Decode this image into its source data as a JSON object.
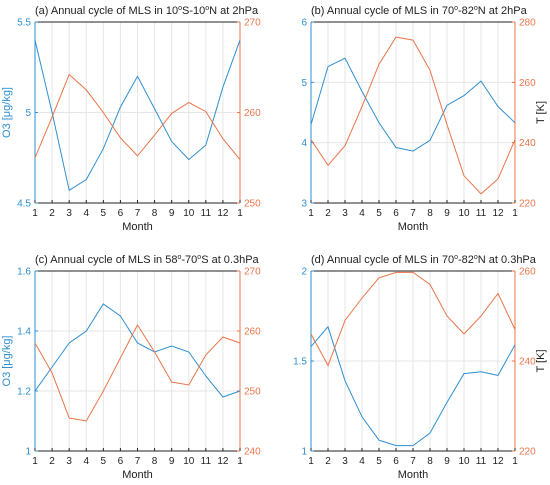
{
  "colors": {
    "o3": "#2f8fd0",
    "temp": "#e8764a",
    "axis": "#222222",
    "grid": "#e6e6e6"
  },
  "chart_data": [
    {
      "type": "line",
      "title_parts": {
        "pre": "(a) Annual cycle of MLS in 10",
        "sup1": "o",
        "mid": "S-10",
        "sup2": "o",
        "post": "N at 2hPa"
      },
      "xlabel": "Month",
      "ylabel_left": "O3 [μg/kg]",
      "ylabel_right": "",
      "x": [
        "1",
        "2",
        "3",
        "4",
        "5",
        "6",
        "7",
        "8",
        "9",
        "10",
        "11",
        "12",
        "1"
      ],
      "ylim_left": [
        4.5,
        5.5
      ],
      "ylim_right": [
        250,
        270
      ],
      "yticks_left": [
        "4.5",
        "5",
        "5.5"
      ],
      "yticks_right": [
        "250",
        "260",
        "270"
      ],
      "series": [
        {
          "axis": "left",
          "values": [
            5.4,
            5.0,
            4.57,
            4.63,
            4.8,
            5.03,
            5.2,
            5.02,
            4.84,
            4.74,
            4.82,
            5.14,
            5.4
          ]
        },
        {
          "axis": "right",
          "values": [
            255.0,
            259.5,
            264.2,
            262.5,
            260.0,
            257.2,
            255.2,
            257.5,
            259.9,
            261.1,
            260.1,
            257.1,
            254.8
          ]
        }
      ]
    },
    {
      "type": "line",
      "title_parts": {
        "pre": "(b) Annual cycle of MLS in 70",
        "sup1": "o",
        "mid": "-82",
        "sup2": "o",
        "post": "N at 2hPa"
      },
      "xlabel": "Month",
      "ylabel_left": "",
      "ylabel_right": "T [K]",
      "x": [
        "1",
        "2",
        "3",
        "4",
        "5",
        "6",
        "7",
        "8",
        "9",
        "10",
        "11",
        "12",
        "1"
      ],
      "ylim_left": [
        3,
        6
      ],
      "ylim_right": [
        220,
        280
      ],
      "yticks_left": [
        "3",
        "4",
        "5",
        "6"
      ],
      "yticks_right": [
        "220",
        "240",
        "260",
        "280"
      ],
      "series": [
        {
          "axis": "left",
          "values": [
            4.3,
            5.26,
            5.4,
            4.85,
            4.33,
            3.92,
            3.86,
            4.04,
            4.62,
            4.78,
            5.02,
            4.6,
            4.33
          ]
        },
        {
          "axis": "right",
          "values": [
            241.0,
            232.5,
            239.0,
            252.0,
            266.0,
            275.0,
            274.0,
            264.0,
            246.0,
            229.0,
            223.0,
            228.0,
            241.0
          ]
        }
      ]
    },
    {
      "type": "line",
      "title_parts": {
        "pre": "(c) Annual cycle of MLS in 58",
        "sup1": "o",
        "mid": "-70",
        "sup2": "o",
        "post": "S at 0.3hPa"
      },
      "xlabel": "Month",
      "ylabel_left": "O3 [μg/kg]",
      "ylabel_right": "",
      "x": [
        "1",
        "2",
        "3",
        "4",
        "5",
        "6",
        "7",
        "8",
        "9",
        "10",
        "11",
        "12",
        "1"
      ],
      "ylim_left": [
        1,
        1.6
      ],
      "ylim_right": [
        240,
        270
      ],
      "yticks_left": [
        "1",
        "1.2",
        "1.4",
        "1.6"
      ],
      "yticks_right": [
        "240",
        "250",
        "260",
        "270"
      ],
      "series": [
        {
          "axis": "left",
          "values": [
            1.2,
            1.28,
            1.36,
            1.4,
            1.49,
            1.45,
            1.36,
            1.33,
            1.35,
            1.33,
            1.25,
            1.18,
            1.2
          ]
        },
        {
          "axis": "right",
          "values": [
            258.0,
            253.0,
            245.5,
            245.0,
            250.0,
            255.5,
            261.0,
            256.5,
            251.5,
            251.0,
            256.0,
            259.0,
            258.0
          ]
        }
      ]
    },
    {
      "type": "line",
      "title_parts": {
        "pre": "(d) Annual cycle of MLS in 70",
        "sup1": "o",
        "mid": "-82",
        "sup2": "o",
        "post": "N at 0.3hPa"
      },
      "xlabel": "Month",
      "ylabel_left": "",
      "ylabel_right": "T [K]",
      "x": [
        "1",
        "2",
        "3",
        "4",
        "5",
        "6",
        "7",
        "8",
        "9",
        "10",
        "11",
        "12",
        "1"
      ],
      "ylim_left": [
        1,
        2
      ],
      "ylim_right": [
        220,
        260
      ],
      "yticks_left": [
        "1",
        "1.5",
        "2"
      ],
      "yticks_right": [
        "220",
        "240",
        "260"
      ],
      "series": [
        {
          "axis": "left",
          "values": [
            1.58,
            1.69,
            1.39,
            1.19,
            1.06,
            1.03,
            1.03,
            1.1,
            1.27,
            1.43,
            1.44,
            1.42,
            1.59
          ]
        },
        {
          "axis": "right",
          "values": [
            246.0,
            239.0,
            249.0,
            254.0,
            258.5,
            259.7,
            259.7,
            257.0,
            250.0,
            246.0,
            250.0,
            255.0,
            247.0
          ]
        }
      ]
    }
  ]
}
